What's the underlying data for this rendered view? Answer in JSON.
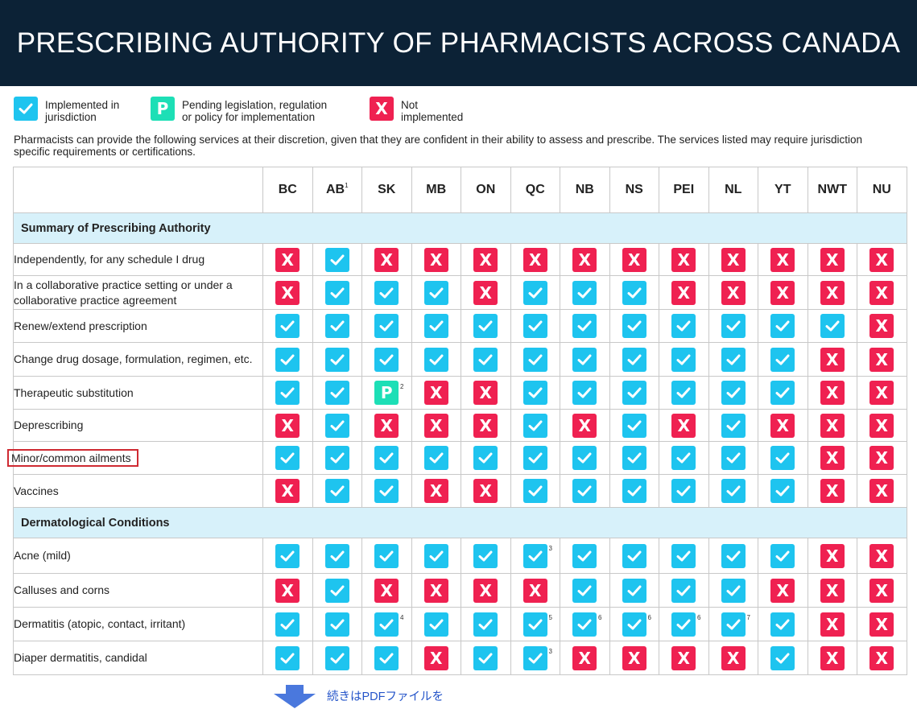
{
  "title": "PRESCRIBING AUTHORITY OF PHARMACISTS ACROSS CANADA",
  "colors": {
    "check": "#1ec4ef",
    "x": "#ef2151",
    "pending": "#1ddfb6",
    "header_bg": "#0c2236",
    "section_bg": "#d7f1fa",
    "highlight": "#cf2a32"
  },
  "legend": [
    {
      "type": "check",
      "icon": "check-icon",
      "text": "Implemented in\njurisdiction"
    },
    {
      "type": "p",
      "icon": "p-letter-icon",
      "glyph": "P",
      "text": "Pending legislation, regulation\nor policy for implementation"
    },
    {
      "type": "x",
      "icon": "x-letter-icon",
      "glyph": "X",
      "text": "Not\nimplemented"
    }
  ],
  "intro": "Pharmacists can provide the following services at their discretion, given that they are confident in their ability to assess and prescribe. The services listed may require jurisdiction specific requirements or certifications.",
  "columns": [
    {
      "label": "BC"
    },
    {
      "label": "AB",
      "sup": "1"
    },
    {
      "label": "SK"
    },
    {
      "label": "MB"
    },
    {
      "label": "ON"
    },
    {
      "label": "QC"
    },
    {
      "label": "NB"
    },
    {
      "label": "NS"
    },
    {
      "label": "PEI"
    },
    {
      "label": "NL"
    },
    {
      "label": "YT"
    },
    {
      "label": "NWT"
    },
    {
      "label": "NU"
    }
  ],
  "glyphs": {
    "x": "X",
    "p": "P"
  },
  "sections": [
    {
      "title": "Summary of Prescribing Authority",
      "rows": [
        {
          "label": "Independently, for any schedule I drug",
          "cells": [
            "x",
            "c",
            "x",
            "x",
            "x",
            "x",
            "x",
            "x",
            "x",
            "x",
            "x",
            "x",
            "x"
          ]
        },
        {
          "label": "In a collaborative practice setting or under a collaborative practice agreement",
          "cells": [
            "x",
            "c",
            "c",
            "c",
            "x",
            "c",
            "c",
            "c",
            "x",
            "x",
            "x",
            "x",
            "x"
          ]
        },
        {
          "label": "Renew/extend prescription",
          "cells": [
            "c",
            "c",
            "c",
            "c",
            "c",
            "c",
            "c",
            "c",
            "c",
            "c",
            "c",
            "c",
            "x"
          ]
        },
        {
          "label": "Change drug dosage, formulation, regimen, etc.",
          "cells": [
            "c",
            "c",
            "c",
            "c",
            "c",
            "c",
            "c",
            "c",
            "c",
            "c",
            "c",
            "x",
            "x"
          ]
        },
        {
          "label": "Therapeutic substitution",
          "cells": [
            "c",
            "c",
            "p",
            "x",
            "x",
            "c",
            "c",
            "c",
            "c",
            "c",
            "c",
            "x",
            "x"
          ],
          "notes": {
            "2": "2"
          }
        },
        {
          "label": "Deprescribing",
          "cells": [
            "x",
            "c",
            "x",
            "x",
            "x",
            "c",
            "x",
            "c",
            "x",
            "c",
            "x",
            "x",
            "x"
          ]
        },
        {
          "label": "Minor/common ailments",
          "highlight": true,
          "cells": [
            "c",
            "c",
            "c",
            "c",
            "c",
            "c",
            "c",
            "c",
            "c",
            "c",
            "c",
            "x",
            "x"
          ]
        },
        {
          "label": "Vaccines",
          "cells": [
            "x",
            "c",
            "c",
            "x",
            "x",
            "c",
            "c",
            "c",
            "c",
            "c",
            "c",
            "x",
            "x"
          ]
        }
      ]
    },
    {
      "title": "Dermatological Conditions",
      "rows": [
        {
          "label": "Acne (mild)",
          "cells": [
            "c",
            "c",
            "c",
            "c",
            "c",
            "c",
            "c",
            "c",
            "c",
            "c",
            "c",
            "x",
            "x"
          ],
          "notes": {
            "5": "3"
          }
        },
        {
          "label": "Calluses and corns",
          "cells": [
            "x",
            "c",
            "x",
            "x",
            "x",
            "x",
            "c",
            "c",
            "c",
            "c",
            "x",
            "x",
            "x"
          ]
        },
        {
          "label": "Dermatitis (atopic, contact, irritant)",
          "cells": [
            "c",
            "c",
            "c",
            "c",
            "c",
            "c",
            "c",
            "c",
            "c",
            "c",
            "c",
            "x",
            "x"
          ],
          "notes": {
            "2": "4",
            "5": "5",
            "6": "6",
            "7": "6",
            "8": "6",
            "9": "7"
          }
        },
        {
          "label": "Diaper dermatitis, candidal",
          "cells": [
            "c",
            "c",
            "c",
            "x",
            "c",
            "c",
            "x",
            "x",
            "x",
            "x",
            "c",
            "x",
            "x"
          ],
          "notes": {
            "5": "3"
          }
        }
      ]
    }
  ],
  "more_link": {
    "icon": "down-arrow-icon",
    "text": "続きはPDFファイルを"
  }
}
